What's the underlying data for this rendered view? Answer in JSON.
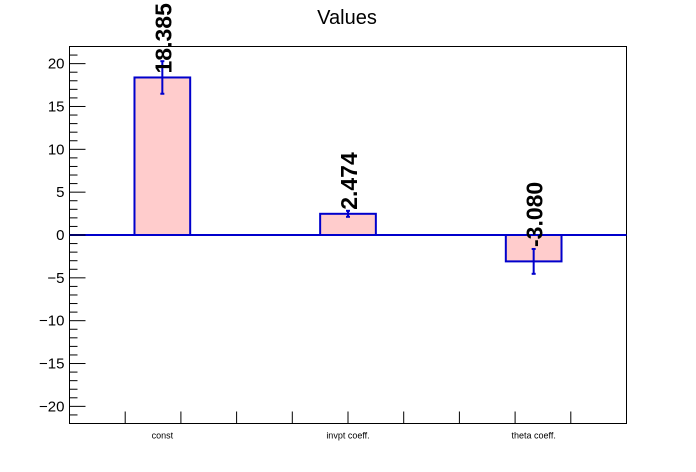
{
  "chart_data": {
    "type": "bar",
    "title": "Values",
    "xlabel": "",
    "ylabel": "",
    "categories": [
      "const",
      "invpt coeff.",
      "theta coeff."
    ],
    "values": [
      18.385,
      2.474,
      -3.08
    ],
    "value_labels": [
      "18.385",
      "2.474",
      "-3.080"
    ],
    "errors": [
      1.9,
      0.35,
      1.45
    ],
    "ylim": [
      -22,
      22
    ],
    "yticks": [
      -20,
      -15,
      -10,
      -5,
      0,
      5,
      10,
      15,
      20
    ],
    "ytick_labels": [
      "−20",
      "−15",
      "−10",
      "−5",
      "0",
      "5",
      "10",
      "15",
      "20"
    ],
    "grid": false,
    "legend": "none",
    "colors": {
      "bar_fill": "#ffcccc",
      "bar_edge": "#0000cc",
      "error_bar": "#0000cc",
      "zero_line": "#0000cc"
    }
  }
}
